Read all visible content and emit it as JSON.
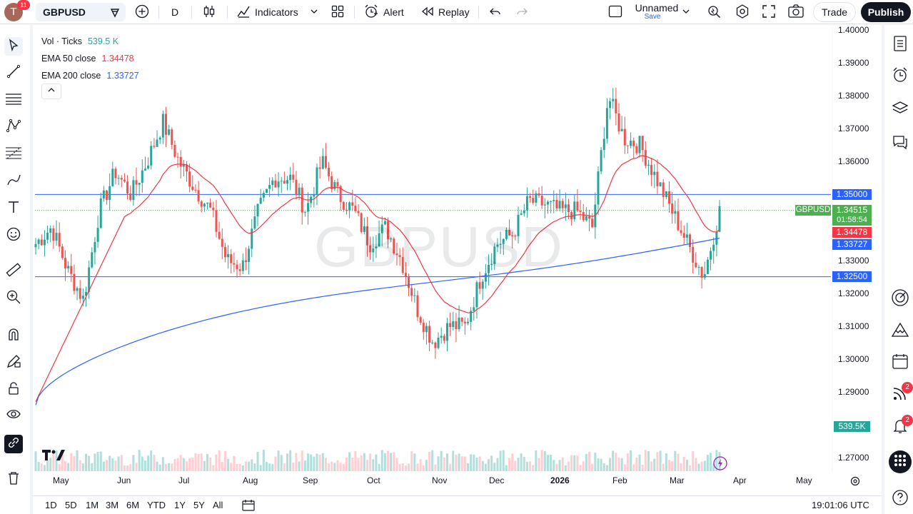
{
  "header": {
    "avatar_letter": "T",
    "avatar_badge": "11",
    "symbol": "GBPUSD",
    "interval": "D",
    "indicators_label": "Indicators",
    "alert_label": "Alert",
    "replay_label": "Replay",
    "layout_name": "Unnamed",
    "layout_save": "Save",
    "trade_label": "Trade",
    "publish_label": "Publish"
  },
  "legend": {
    "vol_name": "Vol · Ticks",
    "vol_value": "539.5 K",
    "ema50_name": "EMA 50 close",
    "ema50_value": "1.34478",
    "ema200_name": "EMA 200 close",
    "ema200_value": "1.33727"
  },
  "watermark": "GBPUSD",
  "price_axis": {
    "ticks": [
      "1.40000",
      "1.39000",
      "1.38000",
      "1.37000",
      "1.36000",
      "1.33000",
      "1.32000",
      "1.31000",
      "1.30000",
      "1.29000",
      "1.27000"
    ],
    "hline_upper": "1.35000",
    "hline_lower": "1.32500",
    "symbol_tag": "GBPUSD",
    "last_price": "1.34515",
    "countdown": "01:58:54",
    "ema50_tag": "1.34478",
    "ema200_tag": "1.33727",
    "volume_tag": "539.5K"
  },
  "time_axis": {
    "labels": [
      "May",
      "Jun",
      "Jul",
      "Aug",
      "Sep",
      "Oct",
      "Nov",
      "Dec",
      "2026",
      "Feb",
      "Mar",
      "Apr",
      "May"
    ]
  },
  "bottom": {
    "ranges": [
      "1D",
      "5D",
      "1M",
      "3M",
      "6M",
      "YTD",
      "1Y",
      "5Y",
      "All"
    ],
    "clock": "19:01:06 UTC"
  },
  "right_toolbar": {
    "rss_badge": "2",
    "bell_badge": "2"
  },
  "colors": {
    "up": "#26a69a",
    "down": "#ef5350",
    "ema50": "#f23645",
    "ema200": "#2962ff",
    "hline": "#2962ff",
    "last_price": "#4caf50",
    "volume_up": "#b2dfdb",
    "volume_down": "#ffcdd2"
  },
  "chart_data": {
    "type": "candlestick",
    "symbol": "GBPUSD",
    "timeframe": "D",
    "ylim": [
      1.265,
      1.402
    ],
    "hlines": [
      1.35,
      1.325
    ],
    "last_price": 1.34515,
    "ema50_last": 1.34478,
    "ema200_last": 1.33727,
    "volume_last": "539.5K",
    "price_path": [
      [
        "May",
        1.335
      ],
      [
        "May",
        1.34
      ],
      [
        "May",
        1.327
      ],
      [
        "May",
        1.318
      ],
      [
        "Jun",
        1.345
      ],
      [
        "Jun",
        1.357
      ],
      [
        "Jun",
        1.35
      ],
      [
        "Jun",
        1.36
      ],
      [
        "Jul",
        1.372
      ],
      [
        "Jul",
        1.36
      ],
      [
        "Jul",
        1.352
      ],
      [
        "Jul",
        1.345
      ],
      [
        "Aug",
        1.33
      ],
      [
        "Aug",
        1.328
      ],
      [
        "Aug",
        1.345
      ],
      [
        "Aug",
        1.355
      ],
      [
        "Sep",
        1.355
      ],
      [
        "Sep",
        1.345
      ],
      [
        "Sep",
        1.36
      ],
      [
        "Sep",
        1.35
      ],
      [
        "Oct",
        1.345
      ],
      [
        "Oct",
        1.335
      ],
      [
        "Oct",
        1.34
      ],
      [
        "Oct",
        1.33
      ],
      [
        "Nov",
        1.315
      ],
      [
        "Nov",
        1.305
      ],
      [
        "Nov",
        1.31
      ],
      [
        "Nov",
        1.31
      ],
      [
        "Dec",
        1.325
      ],
      [
        "Dec",
        1.335
      ],
      [
        "Dec",
        1.338
      ],
      [
        "Dec",
        1.348
      ],
      [
        "2026",
        1.347
      ],
      [
        "2026",
        1.345
      ],
      [
        "2026",
        1.345
      ],
      [
        "2026",
        1.34
      ],
      [
        "Feb",
        1.38
      ],
      [
        "Feb",
        1.367
      ],
      [
        "Feb",
        1.365
      ],
      [
        "Feb",
        1.355
      ],
      [
        "Mar",
        1.345
      ],
      [
        "Mar",
        1.335
      ],
      [
        "Mar",
        1.325
      ],
      [
        "Mar",
        1.345
      ]
    ]
  }
}
